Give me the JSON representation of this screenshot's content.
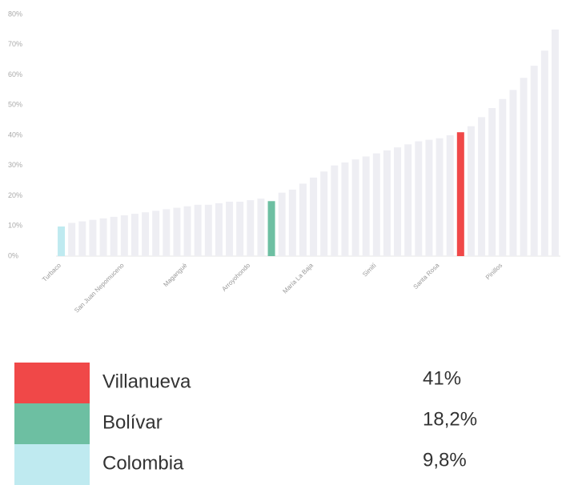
{
  "chart_data": {
    "type": "bar",
    "categories": [
      "Turbaco",
      null,
      null,
      null,
      null,
      null,
      "San Juan Nepomuceno",
      null,
      null,
      null,
      null,
      null,
      "Magangué",
      null,
      null,
      null,
      null,
      null,
      "Arroyohondo",
      null,
      null,
      null,
      null,
      null,
      "María La Baja",
      null,
      null,
      null,
      null,
      null,
      "Simití",
      null,
      null,
      null,
      null,
      null,
      "Santa Rosa",
      null,
      null,
      null,
      null,
      null,
      "Pinillos",
      null,
      null,
      null,
      null,
      null
    ],
    "values": [
      null,
      11,
      11.5,
      12,
      12.5,
      13,
      13.5,
      14,
      14.5,
      15,
      15.5,
      16,
      16.5,
      17,
      17,
      17.5,
      18,
      18,
      18.5,
      19,
      null,
      21,
      22,
      24,
      26,
      28,
      30,
      31,
      32,
      33,
      34,
      35,
      36,
      37,
      38,
      38.5,
      39,
      40,
      null,
      43,
      46,
      49,
      52,
      55,
      59,
      63,
      68,
      75
    ],
    "color": "#eeeef3",
    "series": [
      {
        "name": "Villanueva",
        "color": "#f04848",
        "values": [
          null,
          null,
          null,
          null,
          null,
          null,
          null,
          null,
          null,
          null,
          null,
          null,
          null,
          null,
          null,
          null,
          null,
          null,
          null,
          null,
          null,
          null,
          null,
          null,
          null,
          null,
          null,
          null,
          null,
          null,
          null,
          null,
          null,
          null,
          null,
          null,
          null,
          null,
          41,
          null,
          null,
          null,
          null,
          null,
          null,
          null,
          null,
          null
        ],
        "value_labels": [
          null,
          null,
          null,
          null,
          null,
          null,
          null,
          null,
          null,
          null,
          null,
          null,
          null,
          null,
          null,
          null,
          null,
          null,
          null,
          null,
          null,
          null,
          null,
          null,
          null,
          null,
          null,
          null,
          null,
          null,
          null,
          null,
          null,
          null,
          null,
          null,
          null,
          null,
          "41%",
          null,
          null,
          null,
          null,
          null,
          null,
          null,
          null,
          null
        ]
      },
      {
        "name": "Bolívar",
        "color": "#6dbfa2",
        "values": [
          null,
          null,
          null,
          null,
          null,
          null,
          null,
          null,
          null,
          null,
          null,
          null,
          null,
          null,
          null,
          null,
          null,
          null,
          null,
          null,
          18.2,
          null,
          null,
          null,
          null,
          null,
          null,
          null,
          null,
          null,
          null,
          null,
          null,
          null,
          null,
          null,
          null,
          null,
          null,
          null,
          null,
          null,
          null,
          null,
          null,
          null,
          null,
          null
        ],
        "value_labels": [
          null,
          null,
          null,
          null,
          null,
          null,
          null,
          null,
          null,
          null,
          null,
          null,
          null,
          null,
          null,
          null,
          null,
          null,
          null,
          null,
          "18,2%",
          null,
          null,
          null,
          null,
          null,
          null,
          null,
          null,
          null,
          null,
          null,
          null,
          null,
          null,
          null,
          null,
          null,
          null,
          null,
          null,
          null,
          null,
          null,
          null,
          null,
          null,
          null
        ]
      },
      {
        "name": "Colombia",
        "color": "#bfeaf0",
        "values": [
          9.8,
          null,
          null,
          null,
          null,
          null,
          null,
          null,
          null,
          null,
          null,
          null,
          null,
          null,
          null,
          null,
          null,
          null,
          null,
          null,
          null,
          null,
          null,
          null,
          null,
          null,
          null,
          null,
          null,
          null,
          null,
          null,
          null,
          null,
          null,
          null,
          null,
          null,
          null,
          null,
          null,
          null,
          null,
          null,
          null,
          null,
          null,
          null
        ],
        "value_labels": [
          "9,8%",
          null,
          null,
          null,
          null,
          null,
          null,
          null,
          null,
          null,
          null,
          null,
          null,
          null,
          null,
          null,
          null,
          null,
          null,
          null,
          null,
          null,
          null,
          null,
          null,
          null,
          null,
          null,
          null,
          null,
          null,
          null,
          null,
          null,
          null,
          null,
          null,
          null,
          null,
          null,
          null,
          null,
          null,
          null,
          null,
          null,
          null,
          null
        ]
      }
    ],
    "ylim": [
      0,
      80
    ],
    "yticks": [
      {
        "value": 0,
        "label": "0%"
      },
      {
        "value": 10,
        "label": "10%"
      },
      {
        "value": 20,
        "label": "20%"
      },
      {
        "value": 30,
        "label": "30%"
      },
      {
        "value": 40,
        "label": "40%"
      },
      {
        "value": 50,
        "label": "50%"
      },
      {
        "value": 60,
        "label": "60%"
      },
      {
        "value": 70,
        "label": "70%"
      },
      {
        "value": 80,
        "label": "80%"
      }
    ],
    "grid": false
  }
}
